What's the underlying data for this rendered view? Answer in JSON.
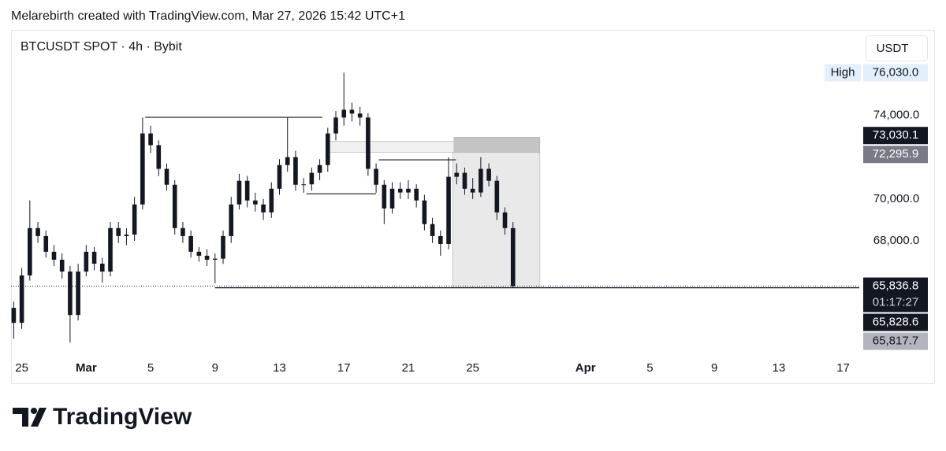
{
  "header": "Melarebirth created with TradingView.com, Mar 27, 2026 15:42 UTC+1",
  "logo": "TradingView",
  "chart_data": {
    "type": "candlestick",
    "title": "BTCUSDT SPOT · 4h · Bybit",
    "currency": "USDT",
    "color": "#131722",
    "x": [
      "2026-02-24T12:00",
      "2026-02-25T00:00",
      "2026-02-25T12:00",
      "2026-02-26T00:00",
      "2026-02-26T12:00",
      "2026-02-27T00:00",
      "2026-02-27T12:00",
      "2026-02-28T00:00",
      "2026-02-28T12:00",
      "2026-03-01T00:00",
      "2026-03-01T12:00",
      "2026-03-02T00:00",
      "2026-03-02T12:00",
      "2026-03-03T00:00",
      "2026-03-03T12:00",
      "2026-03-04T00:00",
      "2026-03-04T12:00",
      "2026-03-05T00:00",
      "2026-03-05T12:00",
      "2026-03-06T00:00",
      "2026-03-06T12:00",
      "2026-03-07T00:00",
      "2026-03-07T12:00",
      "2026-03-08T00:00",
      "2026-03-08T12:00",
      "2026-03-09T00:00",
      "2026-03-09T12:00",
      "2026-03-10T00:00",
      "2026-03-10T12:00",
      "2026-03-11T00:00",
      "2026-03-11T12:00",
      "2026-03-12T00:00",
      "2026-03-12T12:00",
      "2026-03-13T00:00",
      "2026-03-13T12:00",
      "2026-03-14T00:00",
      "2026-03-14T12:00",
      "2026-03-15T00:00",
      "2026-03-15T12:00",
      "2026-03-16T00:00",
      "2026-03-16T12:00",
      "2026-03-17T00:00",
      "2026-03-17T12:00",
      "2026-03-18T00:00",
      "2026-03-18T12:00",
      "2026-03-19T00:00",
      "2026-03-19T12:00",
      "2026-03-20T00:00",
      "2026-03-20T12:00",
      "2026-03-21T00:00",
      "2026-03-21T12:00",
      "2026-03-22T00:00",
      "2026-03-22T12:00",
      "2026-03-23T00:00",
      "2026-03-23T12:00",
      "2026-03-24T00:00",
      "2026-03-24T12:00",
      "2026-03-25T00:00",
      "2026-03-25T12:00",
      "2026-03-26T00:00",
      "2026-03-26T12:00",
      "2026-03-27T00:00",
      "2026-03-27T12:00"
    ],
    "open": [
      64800,
      64085,
      66350,
      68610,
      68230,
      67480,
      67100,
      66535,
      64460,
      66535,
      67480,
      66910,
      66535,
      68610,
      68230,
      68300,
      69740,
      73130,
      72570,
      71440,
      70680,
      68610,
      68230,
      67480,
      67290,
      67100,
      67150,
      68230,
      69740,
      70870,
      69930,
      69740,
      69360,
      70490,
      71620,
      72000,
      70680,
      70700,
      71250,
      71620,
      73130,
      73890,
      74260,
      74080,
      73890,
      71440,
      70680,
      69550,
      70490,
      70310,
      70490,
      69930,
      68800,
      68230,
      67850,
      71060,
      71250,
      70490,
      70310,
      71440,
      70870,
      69360,
      68610
    ],
    "high": [
      65100,
      66700,
      69930,
      68900,
      68500,
      67800,
      67400,
      66800,
      66900,
      67800,
      67700,
      67200,
      68900,
      68900,
      68600,
      70100,
      73890,
      73500,
      72800,
      71700,
      70900,
      68900,
      68500,
      67700,
      67600,
      67400,
      68500,
      70100,
      71200,
      71100,
      70300,
      70000,
      70800,
      71900,
      73900,
      72300,
      71000,
      71500,
      71900,
      73400,
      74200,
      76030,
      74600,
      74400,
      74100,
      71700,
      70900,
      70800,
      70800,
      70900,
      70700,
      70200,
      69100,
      68500,
      72000,
      71700,
      71500,
      71000,
      72000,
      71700,
      71100,
      69600,
      68900
    ],
    "low": [
      63330,
      63800,
      66100,
      67900,
      67200,
      66800,
      66200,
      63140,
      64200,
      66300,
      66600,
      66000,
      66300,
      67900,
      67800,
      68000,
      69500,
      72200,
      71100,
      70400,
      68300,
      67900,
      67200,
      67000,
      66800,
      65970,
      66900,
      67900,
      69500,
      69600,
      69400,
      69000,
      69100,
      70200,
      71300,
      70400,
      70300,
      70400,
      70900,
      71300,
      72800,
      73500,
      73700,
      73500,
      71100,
      70300,
      68800,
      69300,
      70000,
      70000,
      69600,
      68500,
      67900,
      67290,
      67600,
      70700,
      70200,
      70000,
      70100,
      70600,
      69000,
      68300,
      65740
    ],
    "close": [
      64085,
      66350,
      68610,
      68230,
      67480,
      67100,
      66535,
      64460,
      66535,
      67480,
      66910,
      66535,
      68610,
      68230,
      68300,
      69740,
      73130,
      72570,
      71440,
      70680,
      68610,
      68230,
      67480,
      67290,
      67100,
      67150,
      68230,
      69740,
      70870,
      69930,
      69740,
      69360,
      70490,
      71620,
      72000,
      70680,
      70700,
      71250,
      71620,
      73130,
      73890,
      74260,
      74080,
      73890,
      71440,
      70680,
      69550,
      70490,
      70310,
      70490,
      69930,
      68800,
      68230,
      67850,
      71060,
      71250,
      70490,
      70310,
      71440,
      70870,
      69360,
      68610,
      65836.8
    ],
    "xlim": [
      "2026-02-24T08:00",
      "2026-04-18T00:00"
    ],
    "xticks": [
      {
        "value": "2026-02-25",
        "label": "25"
      },
      {
        "value": "2026-03-01",
        "label": "Mar"
      },
      {
        "value": "2026-03-05",
        "label": "5"
      },
      {
        "value": "2026-03-09",
        "label": "9"
      },
      {
        "value": "2026-03-13",
        "label": "13"
      },
      {
        "value": "2026-03-17",
        "label": "17"
      },
      {
        "value": "2026-03-21",
        "label": "21"
      },
      {
        "value": "2026-03-25",
        "label": "25"
      },
      {
        "value": "2026-04-01",
        "label": "Apr"
      },
      {
        "value": "2026-04-05",
        "label": "5"
      },
      {
        "value": "2026-04-09",
        "label": "9"
      },
      {
        "value": "2026-04-13",
        "label": "13"
      },
      {
        "value": "2026-04-17",
        "label": "17"
      }
    ],
    "ylim": [
      62400,
      78000
    ],
    "yticks": [
      {
        "value": 74000,
        "label": "74,000.0"
      },
      {
        "value": 70000,
        "label": "70,000.0"
      },
      {
        "value": 68000,
        "label": "68,000.0"
      }
    ],
    "price_labels": [
      {
        "value": 76030,
        "label": "76,030.0",
        "tag": "High",
        "style": "high"
      },
      {
        "value": 73030.1,
        "label": "73,030.1",
        "style": "dark"
      },
      {
        "value": 72295.9,
        "label": "72,295.9",
        "style": "gray"
      },
      {
        "value": 65836.8,
        "label": "65,836.8",
        "sub": "01:17:27",
        "style": "dark"
      },
      {
        "value": 65828.6,
        "label": "65,828.6",
        "style": "dark"
      },
      {
        "value": 65817.7,
        "label": "65,817.7",
        "style": "light"
      }
    ],
    "drawings": [
      {
        "kind": "hline",
        "from": "2026-03-04T16:00",
        "to": "2026-03-15T16:00",
        "price": 73900
      },
      {
        "kind": "hline",
        "from": "2026-03-14T16:00",
        "to": "2026-03-19T00:00",
        "price": 70250
      },
      {
        "kind": "hline",
        "from": "2026-03-19T04:00",
        "to": "2026-03-23T23:00",
        "price": 71870
      },
      {
        "kind": "hline",
        "from": "2026-03-09T00:00",
        "to": "2026-04-18T00:00",
        "price": 65760
      },
      {
        "kind": "rect",
        "from": "2026-03-16T00:00",
        "to": "2026-03-23T20:00",
        "price": 72760,
        "price2": 72230,
        "color": "#f0f0f0"
      },
      {
        "kind": "rect",
        "from": "2026-03-23T20:00",
        "to": "2026-03-29T04:00",
        "price": 72950,
        "price2": 72230,
        "color": "#c4c4c4"
      },
      {
        "kind": "rect",
        "from": "2026-03-23T18:00",
        "to": "2026-03-29T04:00",
        "price": 72230,
        "price2": 65760,
        "color": "#e9e9e9"
      }
    ]
  }
}
